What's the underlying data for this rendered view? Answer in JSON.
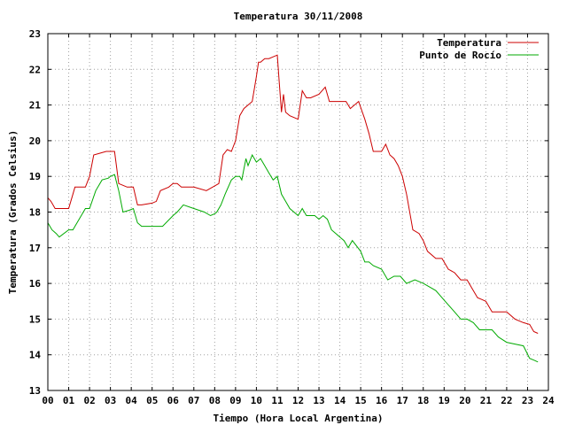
{
  "chart_data": {
    "type": "line",
    "title": "Temperatura 30/11/2008",
    "xlabel": "Tiempo (Hora Local Argentina)",
    "ylabel": "Temperatura (Grados Celsius)",
    "xlim": [
      0,
      24
    ],
    "ylim": [
      13,
      23
    ],
    "xticks": [
      "00",
      "01",
      "02",
      "03",
      "04",
      "05",
      "06",
      "07",
      "08",
      "09",
      "10",
      "11",
      "12",
      "13",
      "14",
      "15",
      "16",
      "17",
      "18",
      "19",
      "20",
      "21",
      "22",
      "23",
      "24"
    ],
    "yticks": [
      "13",
      "14",
      "15",
      "16",
      "17",
      "18",
      "19",
      "20",
      "21",
      "22",
      "23"
    ],
    "grid": true,
    "legend_position": "top-right",
    "series": [
      {
        "name": "Temperatura",
        "color": "#cc0000",
        "x": [
          0,
          0.15,
          0.35,
          0.55,
          1.0,
          1.2,
          1.3,
          1.5,
          1.8,
          2.0,
          2.2,
          2.5,
          2.8,
          3.0,
          3.2,
          3.4,
          3.6,
          3.8,
          4.1,
          4.3,
          4.5,
          5.0,
          5.2,
          5.4,
          5.8,
          6.0,
          6.2,
          6.4,
          7.0,
          7.6,
          7.9,
          8.2,
          8.4,
          8.6,
          8.8,
          9.0,
          9.2,
          9.4,
          9.6,
          9.8,
          10.0,
          10.1,
          10.2,
          10.4,
          10.6,
          10.8,
          11.0,
          11.1,
          11.2,
          11.3,
          11.4,
          11.6,
          12.0,
          12.2,
          12.4,
          12.6,
          13.0,
          13.3,
          13.5,
          14.0,
          14.3,
          14.5,
          14.9,
          15.2,
          15.4,
          15.6,
          15.8,
          16.0,
          16.2,
          16.4,
          16.6,
          16.8,
          17.0,
          17.2,
          17.5,
          17.8,
          18.0,
          18.2,
          18.6,
          18.9,
          19.2,
          19.5,
          19.8,
          20.1,
          20.4,
          20.6,
          20.8,
          21.0,
          21.3,
          21.6,
          22.0,
          22.4,
          22.8,
          23.1,
          23.3,
          23.5
        ],
        "y": [
          18.4,
          18.3,
          18.1,
          18.1,
          18.1,
          18.5,
          18.7,
          18.7,
          18.7,
          19.0,
          19.6,
          19.65,
          19.7,
          19.7,
          19.7,
          18.8,
          18.75,
          18.7,
          18.7,
          18.2,
          18.2,
          18.25,
          18.3,
          18.6,
          18.7,
          18.8,
          18.8,
          18.7,
          18.7,
          18.6,
          18.7,
          18.8,
          19.6,
          19.75,
          19.7,
          20.0,
          20.7,
          20.9,
          21.0,
          21.1,
          21.8,
          22.2,
          22.2,
          22.3,
          22.3,
          22.35,
          22.4,
          21.6,
          20.8,
          21.3,
          20.8,
          20.7,
          20.6,
          21.4,
          21.2,
          21.2,
          21.3,
          21.5,
          21.1,
          21.1,
          21.1,
          20.9,
          21.1,
          20.6,
          20.2,
          19.7,
          19.7,
          19.7,
          19.9,
          19.6,
          19.5,
          19.3,
          19.0,
          18.5,
          17.5,
          17.4,
          17.2,
          16.9,
          16.7,
          16.7,
          16.4,
          16.3,
          16.1,
          16.1,
          15.8,
          15.6,
          15.55,
          15.5,
          15.2,
          15.2,
          15.2,
          15.0,
          14.9,
          14.85,
          14.65,
          14.6
        ]
      },
      {
        "name": "Punto de Rocío",
        "color": "#00aa00",
        "x": [
          0,
          0.2,
          0.4,
          0.55,
          1.0,
          1.2,
          1.5,
          1.8,
          2.0,
          2.3,
          2.6,
          2.9,
          3.0,
          3.2,
          3.4,
          3.6,
          3.9,
          4.1,
          4.3,
          4.5,
          5.0,
          5.2,
          5.5,
          6.0,
          6.2,
          6.5,
          7.0,
          7.5,
          7.8,
          8.0,
          8.1,
          8.3,
          8.5,
          8.8,
          9.0,
          9.2,
          9.3,
          9.5,
          9.6,
          9.8,
          10.0,
          10.2,
          10.4,
          10.6,
          10.8,
          11.0,
          11.2,
          11.4,
          11.6,
          12.0,
          12.2,
          12.4,
          12.8,
          13.0,
          13.2,
          13.4,
          13.6,
          14.0,
          14.2,
          14.4,
          14.6,
          15.0,
          15.2,
          15.4,
          15.6,
          16.0,
          16.3,
          16.6,
          16.9,
          17.2,
          17.6,
          18.0,
          18.3,
          18.6,
          18.9,
          19.2,
          19.5,
          19.8,
          20.1,
          20.4,
          20.7,
          21.0,
          21.3,
          21.6,
          22.0,
          22.4,
          22.8,
          23.1,
          23.3,
          23.5
        ],
        "y": [
          17.7,
          17.5,
          17.4,
          17.3,
          17.5,
          17.5,
          17.8,
          18.1,
          18.1,
          18.6,
          18.9,
          18.95,
          19.0,
          19.05,
          18.6,
          18.0,
          18.05,
          18.1,
          17.7,
          17.6,
          17.6,
          17.6,
          17.6,
          17.9,
          18.0,
          18.2,
          18.1,
          18.0,
          17.9,
          17.95,
          18.0,
          18.2,
          18.5,
          18.9,
          19.0,
          19.0,
          18.9,
          19.5,
          19.3,
          19.6,
          19.4,
          19.5,
          19.3,
          19.1,
          18.9,
          19.0,
          18.5,
          18.3,
          18.1,
          17.9,
          18.1,
          17.9,
          17.9,
          17.8,
          17.9,
          17.8,
          17.5,
          17.3,
          17.2,
          17.0,
          17.2,
          16.9,
          16.6,
          16.6,
          16.5,
          16.4,
          16.1,
          16.2,
          16.2,
          16.0,
          16.1,
          16.0,
          15.9,
          15.8,
          15.6,
          15.4,
          15.2,
          15.0,
          15.0,
          14.9,
          14.7,
          14.7,
          14.7,
          14.5,
          14.35,
          14.3,
          14.25,
          13.9,
          13.85,
          13.8
        ]
      }
    ]
  }
}
